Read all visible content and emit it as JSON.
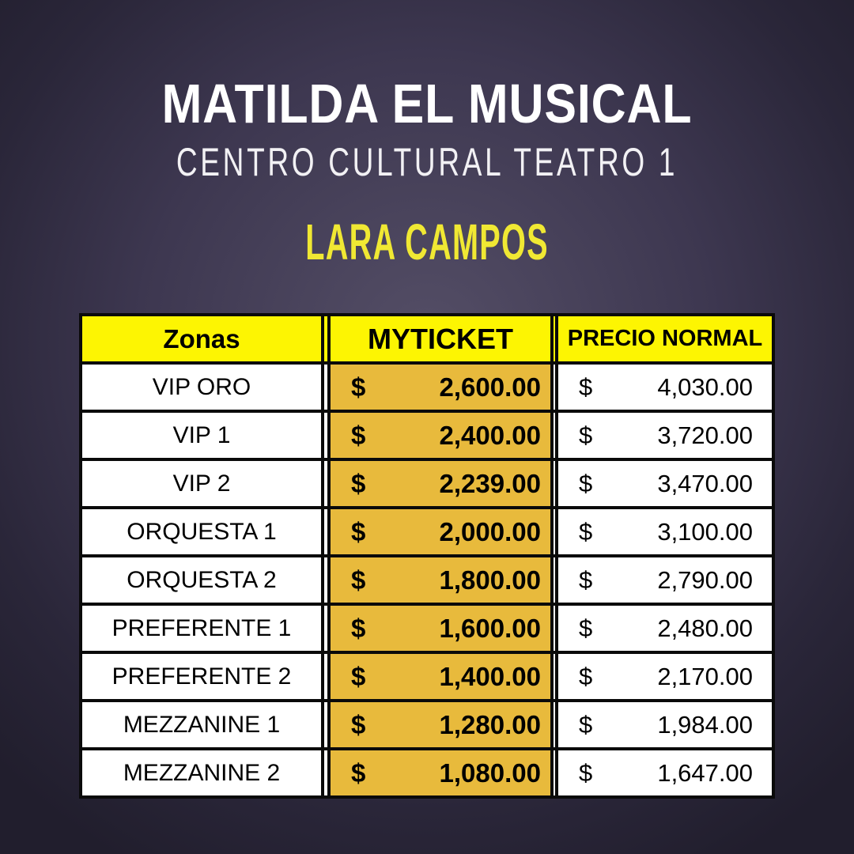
{
  "poster": {
    "title": "MATILDA EL MUSICAL",
    "venue": "CENTRO CULTURAL TEATRO 1",
    "artist": "LARA CAMPOS"
  },
  "table": {
    "currency": "$",
    "columns": [
      "Zonas",
      "MYTICKET",
      "PRECIO NORMAL"
    ],
    "rows": [
      {
        "zone": "VIP ORO",
        "myticket": "2,600.00",
        "normal": "4,030.00"
      },
      {
        "zone": "VIP 1",
        "myticket": "2,400.00",
        "normal": "3,720.00"
      },
      {
        "zone": "VIP 2",
        "myticket": "2,239.00",
        "normal": "3,470.00"
      },
      {
        "zone": "ORQUESTA 1",
        "myticket": "2,000.00",
        "normal": "3,100.00"
      },
      {
        "zone": "ORQUESTA 2",
        "myticket": "1,800.00",
        "normal": "2,790.00"
      },
      {
        "zone": "PREFERENTE 1",
        "myticket": "1,600.00",
        "normal": "2,480.00"
      },
      {
        "zone": "PREFERENTE 2",
        "myticket": "1,400.00",
        "normal": "2,170.00"
      },
      {
        "zone": "MEZZANINE 1",
        "myticket": "1,280.00",
        "normal": "1,984.00"
      },
      {
        "zone": "MEZZANINE 2",
        "myticket": "1,080.00",
        "normal": "1,647.00"
      }
    ]
  },
  "colors": {
    "background_center": "#544e66",
    "background_edge": "#211e2d",
    "header_yellow": "#fdf502",
    "myticket_gold": "#e8ba3c",
    "artist_yellow": "#f0e833",
    "title_white": "#ffffff",
    "border_black": "#0a0a0a",
    "text_black": "#000000"
  }
}
